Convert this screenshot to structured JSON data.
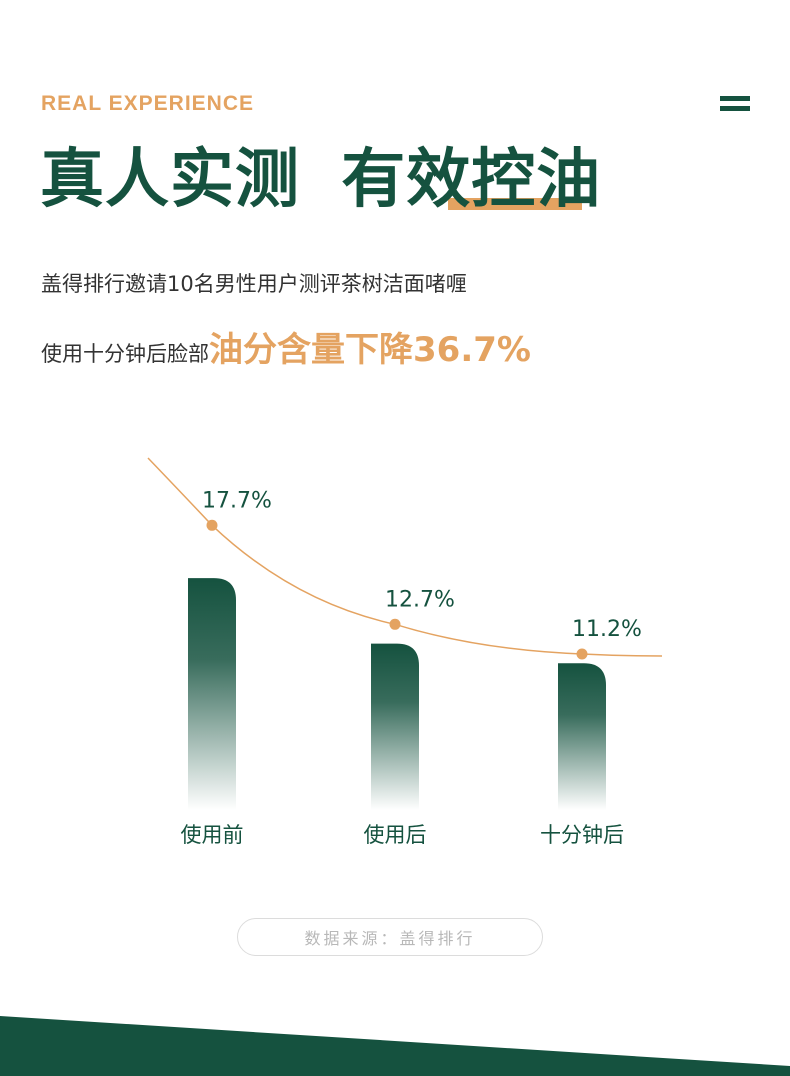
{
  "header": {
    "eyebrow": "REAL EXPERIENCE",
    "title_part1": "真人实测",
    "title_part2": "有效控油",
    "menu_icon": "menu-icon"
  },
  "description": {
    "line1": "盖得排行邀请10名男性用户测评茶树洁面啫喱",
    "line2_prefix": "使用十分钟后脸部",
    "line2_highlight": "油分含量下降36.7%"
  },
  "chart_data": {
    "type": "bar",
    "categories": [
      "使用前",
      "使用后",
      "十分钟后"
    ],
    "values": [
      17.7,
      12.7,
      11.2
    ],
    "data_labels": [
      "17.7%",
      "12.7%",
      "11.2%"
    ],
    "title": "",
    "xlabel": "",
    "ylabel": "",
    "ylim": [
      0,
      20
    ],
    "overlay": "trend-line",
    "grid": false,
    "colors": {
      "bar": "#15523f",
      "line": "#e4a361",
      "label": "#15523f"
    }
  },
  "footer": {
    "source": "数据来源：盖得排行"
  },
  "colors": {
    "primary": "#15523f",
    "accent": "#e4a361"
  }
}
